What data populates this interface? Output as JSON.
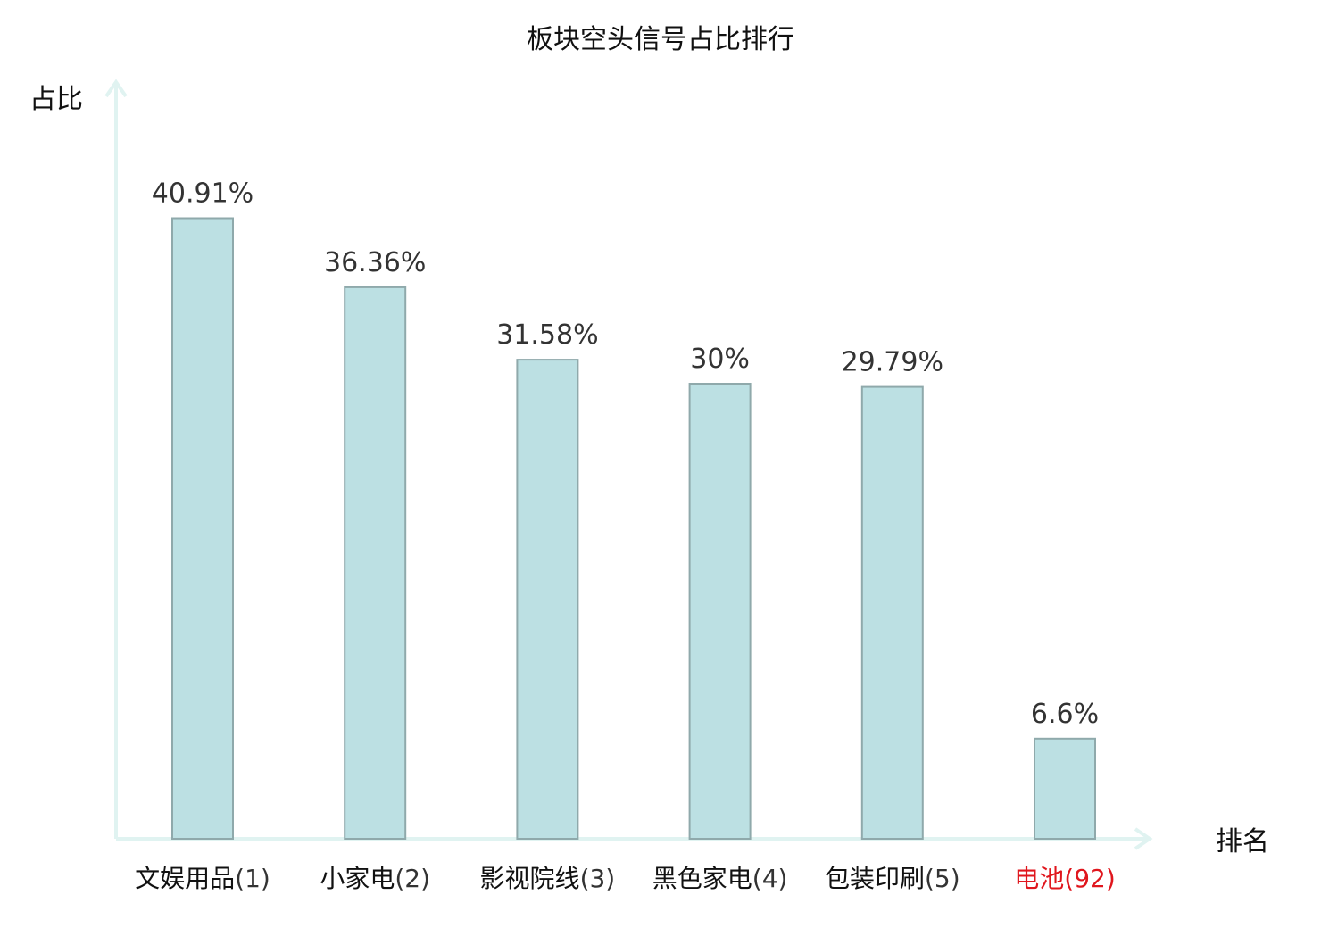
{
  "chart_data": {
    "type": "bar",
    "title": "板块空头信号占比排行",
    "ylabel": "占比",
    "xlabel": "排名",
    "categories": [
      {
        "name": "文娱用品",
        "rank": "(1)"
      },
      {
        "name": "小家电",
        "rank": "(2)"
      },
      {
        "name": "影视院线",
        "rank": "(3)"
      },
      {
        "name": "黑色家电",
        "rank": "(4)"
      },
      {
        "name": "包装印刷",
        "rank": "(5)"
      },
      {
        "name": "电池",
        "rank": "(92)"
      }
    ],
    "values": [
      40.91,
      36.36,
      31.58,
      30,
      29.79,
      6.6
    ],
    "value_labels": [
      "40.91%",
      "36.36%",
      "31.58%",
      "30%",
      "29.79%",
      "6.6%"
    ],
    "highlight_index": 5,
    "ylim": [
      0,
      50
    ],
    "grid": false,
    "colors": {
      "bar_fill": "#bce0e3",
      "bar_stroke": "#8fa9ab",
      "axis": "#e0f3f1",
      "label_default": "#111111",
      "label_highlight": "#e0161d"
    }
  }
}
